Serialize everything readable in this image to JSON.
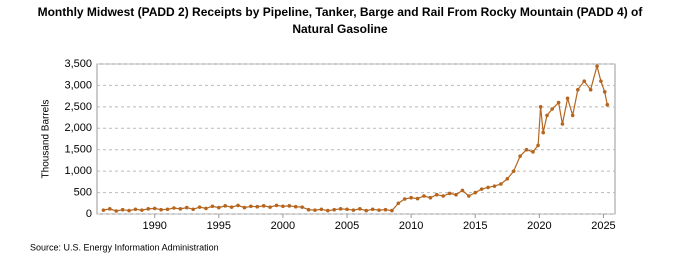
{
  "chart_data": {
    "type": "line",
    "title": "Monthly Midwest (PADD 2)  Receipts by Pipeline, Tanker, Barge and Rail From Rocky Mountain (PADD 4) of Natural Gasoline",
    "y_label": "Thousand Barrels",
    "source": "Source: U.S. Energy Information Administration",
    "color": "#b5651d",
    "grid": true,
    "xlim": [
      1985.5,
      2025.9
    ],
    "xticks": [
      1990,
      1995,
      2000,
      2005,
      2010,
      2015,
      2020,
      2025
    ],
    "ylim": [
      0,
      3500
    ],
    "yticks": [
      0,
      {
        "value": 500,
        "label": "500"
      },
      {
        "value": 1000,
        "label": "1,000"
      },
      {
        "value": 1500,
        "label": "1,500"
      },
      {
        "value": 2000,
        "label": "2,000"
      },
      {
        "value": 2500,
        "label": "2,500"
      },
      {
        "value": 3000,
        "label": "3,000"
      },
      {
        "value": 3500,
        "label": "3,500"
      }
    ],
    "x": [
      1986.0,
      1986.5,
      1987.0,
      1987.5,
      1988.0,
      1988.5,
      1989.0,
      1989.5,
      1990.0,
      1990.5,
      1991.0,
      1991.5,
      1992.0,
      1992.5,
      1993.0,
      1993.5,
      1994.0,
      1994.5,
      1995.0,
      1995.5,
      1996.0,
      1996.5,
      1997.0,
      1997.5,
      1998.0,
      1998.5,
      1999.0,
      1999.5,
      2000.0,
      2000.5,
      2001.0,
      2001.5,
      2002.0,
      2002.5,
      2003.0,
      2003.5,
      2004.0,
      2004.5,
      2005.0,
      2005.5,
      2006.0,
      2006.5,
      2007.0,
      2007.5,
      2008.0,
      2008.5,
      2009.0,
      2009.5,
      2010.0,
      2010.5,
      2011.0,
      2011.5,
      2012.0,
      2012.5,
      2013.0,
      2013.5,
      2014.0,
      2014.5,
      2015.0,
      2015.5,
      2016.0,
      2016.5,
      2017.0,
      2017.5,
      2018.0,
      2018.5,
      2019.0,
      2019.5,
      2019.9,
      2020.1,
      2020.3,
      2020.6,
      2021.0,
      2021.5,
      2021.8,
      2022.2,
      2022.6,
      2023.0,
      2023.5,
      2024.0,
      2024.5,
      2024.8,
      2025.1,
      2025.3
    ],
    "series": [
      {
        "name": "Natural Gasoline",
        "values": [
          90,
          120,
          70,
          100,
          80,
          110,
          90,
          120,
          130,
          100,
          110,
          140,
          120,
          150,
          110,
          160,
          130,
          180,
          150,
          190,
          160,
          200,
          150,
          180,
          170,
          190,
          160,
          200,
          180,
          190,
          170,
          160,
          100,
          90,
          110,
          80,
          100,
          120,
          110,
          90,
          120,
          80,
          110,
          90,
          100,
          80,
          250,
          350,
          380,
          360,
          420,
          380,
          450,
          420,
          480,
          450,
          550,
          420,
          500,
          580,
          620,
          650,
          700,
          820,
          1000,
          1350,
          1500,
          1450,
          1600,
          2500,
          1900,
          2300,
          2450,
          2600,
          2100,
          2700,
          2300,
          2900,
          3100,
          2900,
          3450,
          3100,
          2850,
          2550
        ]
      }
    ]
  }
}
